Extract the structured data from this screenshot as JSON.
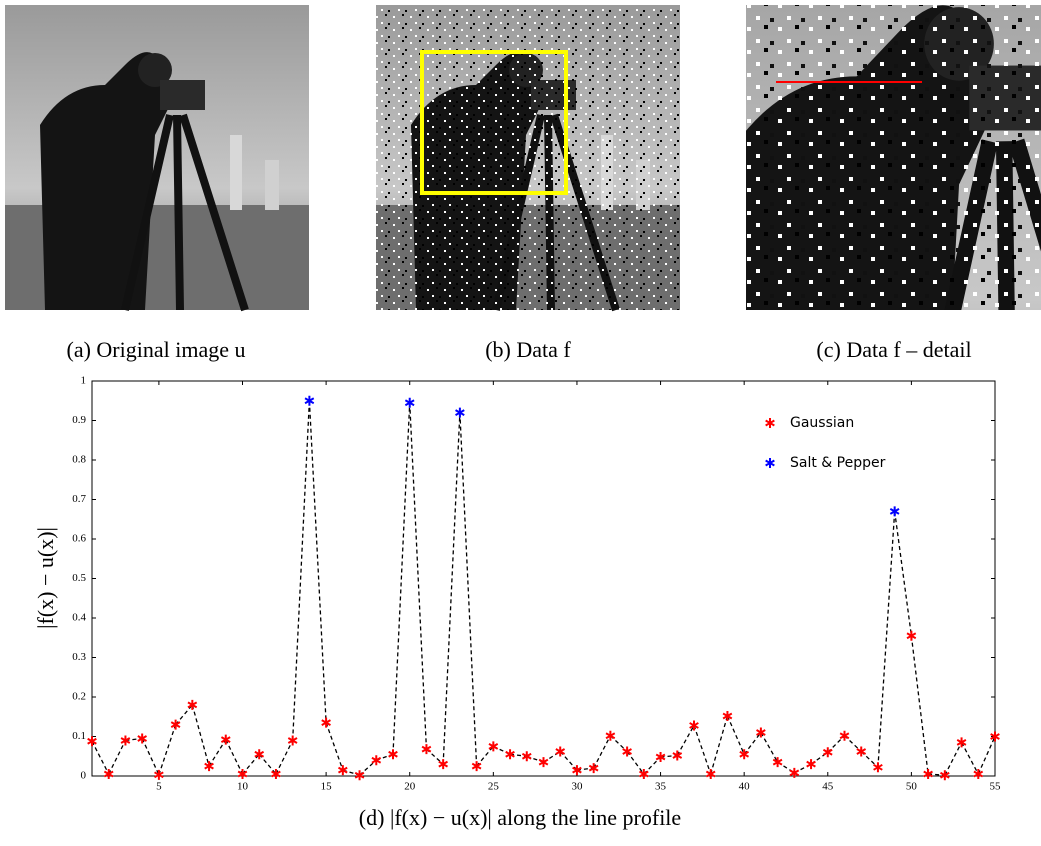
{
  "panels": [
    {
      "caption": "(a) Original image u"
    },
    {
      "caption": "(b) Data f"
    },
    {
      "caption": "(c) Data f – detail"
    }
  ],
  "chart_data": {
    "type": "line",
    "caption": "(d) |f(x) − u(x)| along the line profile",
    "ylabel": "|f(x) − u(x)|",
    "x": [
      1,
      2,
      3,
      4,
      5,
      6,
      7,
      8,
      9,
      10,
      11,
      12,
      13,
      14,
      15,
      16,
      17,
      18,
      19,
      20,
      21,
      22,
      23,
      24,
      25,
      26,
      27,
      28,
      29,
      30,
      31,
      32,
      33,
      34,
      35,
      36,
      37,
      38,
      39,
      40,
      41,
      42,
      43,
      44,
      45,
      46,
      47,
      48,
      49,
      50,
      51,
      52,
      53,
      54,
      55
    ],
    "series": [
      {
        "name": "Gaussian",
        "color": "#ff0000",
        "values": [
          0.088,
          0.005,
          0.09,
          0.095,
          0.003,
          0.13,
          0.18,
          0.025,
          0.092,
          0.005,
          0.055,
          0.005,
          0.09,
          null,
          0.135,
          0.015,
          0.002,
          0.04,
          0.055,
          null,
          0.068,
          0.03,
          null,
          0.025,
          0.075,
          0.055,
          0.05,
          0.035,
          0.062,
          0.015,
          0.02,
          0.102,
          0.062,
          0.005,
          0.048,
          0.052,
          0.128,
          0.005,
          0.152,
          0.055,
          0.11,
          0.035,
          0.008,
          0.03,
          0.06,
          0.102,
          0.062,
          0.022,
          null,
          0.355,
          0.005,
          0.002,
          0.085,
          0.005,
          0.1
        ]
      },
      {
        "name": "Salt & Pepper",
        "color": "#0000ff",
        "values": [
          null,
          null,
          null,
          null,
          null,
          null,
          null,
          null,
          null,
          null,
          null,
          null,
          null,
          0.95,
          null,
          null,
          null,
          null,
          null,
          0.945,
          null,
          null,
          0.92,
          null,
          null,
          null,
          null,
          null,
          null,
          null,
          null,
          null,
          null,
          null,
          null,
          null,
          null,
          null,
          null,
          null,
          null,
          null,
          null,
          null,
          null,
          null,
          null,
          null,
          0.67,
          null,
          null,
          null,
          null,
          null,
          null
        ]
      }
    ],
    "line_color": "#000000",
    "xlim": [
      1,
      55
    ],
    "xticks": [
      5,
      10,
      15,
      20,
      25,
      30,
      35,
      40,
      45,
      50,
      55
    ],
    "ylim": [
      0,
      1
    ],
    "yticks": [
      0,
      0.1,
      0.2,
      0.3,
      0.4,
      0.5,
      0.6,
      0.7,
      0.8,
      0.9,
      1
    ],
    "grid": false,
    "legend": "upper right"
  }
}
